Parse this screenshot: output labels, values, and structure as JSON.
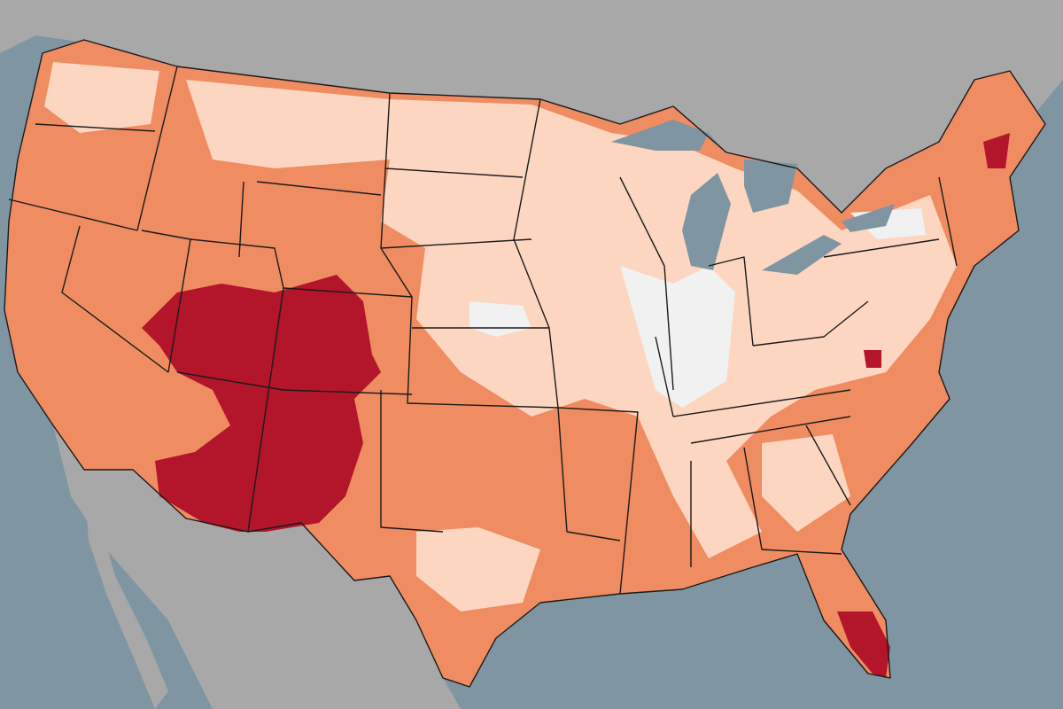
{
  "map": {
    "colors": {
      "ocean": "#7f95a2",
      "land": "#a8a8a8",
      "base": "#ef8c61",
      "light": "#fdd6c1",
      "pale": "#f1f1f1",
      "high": "#b3152b"
    }
  }
}
